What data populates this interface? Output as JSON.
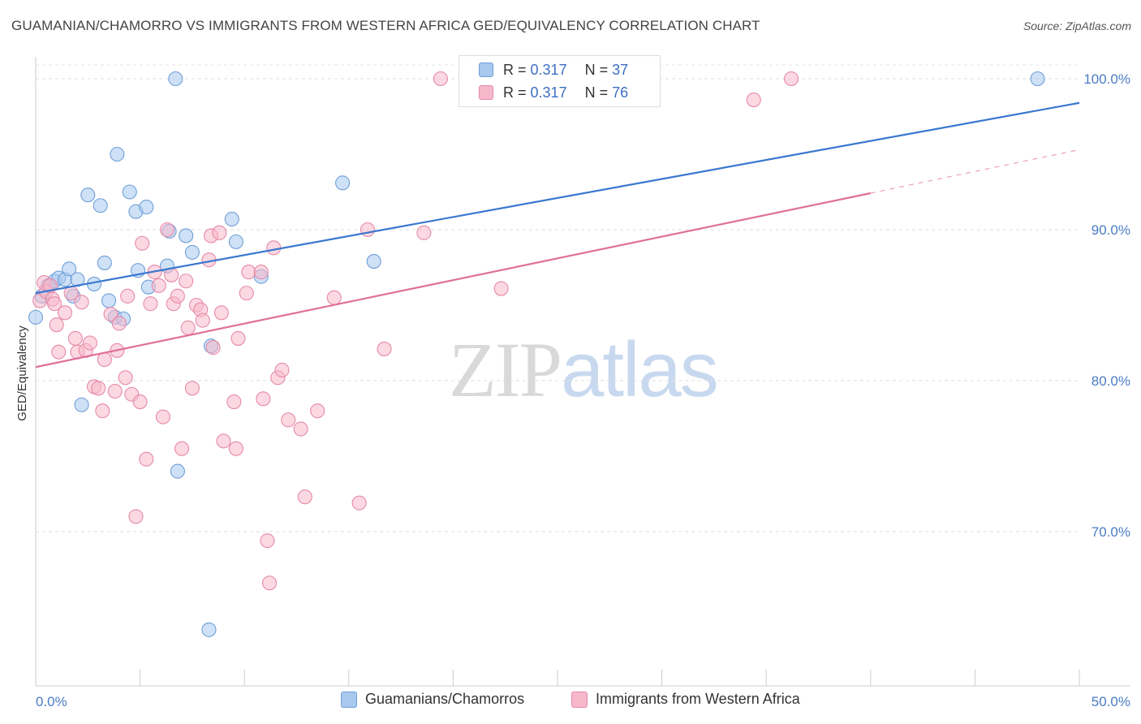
{
  "title": "GUAMANIAN/CHAMORRO VS IMMIGRANTS FROM WESTERN AFRICA GED/EQUIVALENCY CORRELATION CHART",
  "source": "Source: ZipAtlas.com",
  "watermark": {
    "zip": "ZIP",
    "atlas": "atlas"
  },
  "legend": {
    "r_label": "R =",
    "n_label": "N =",
    "rows": [
      {
        "r": "0.317",
        "n": "37",
        "color": "#a8c8ee",
        "border": "#6f9fd8"
      },
      {
        "r": "0.317",
        "n": "76",
        "color": "#f7b8cb",
        "border": "#e68aa8"
      }
    ]
  },
  "bottom_legend": [
    "Guamanians/Chamorros",
    "Immigrants from Western Africa"
  ],
  "chart_data": {
    "type": "scatter",
    "title": "GUAMANIAN/CHAMORRO VS IMMIGRANTS FROM WESTERN AFRICA GED/EQUIVALENCY CORRELATION CHART",
    "xlabel": "",
    "ylabel": "GED/Equivalency",
    "xlim": [
      0,
      50
    ],
    "ylim": [
      61.5,
      102
    ],
    "x_tick_labels": [
      "0.0%",
      "50.0%"
    ],
    "y_ticks": [
      70,
      80,
      90,
      100
    ],
    "y_tick_labels": [
      "70.0%",
      "80.0%",
      "90.0%",
      "100.0%"
    ],
    "grid": "horizontal dashed",
    "legend_placement": "top-center",
    "series": [
      {
        "name": "Guamanians/Chamorros",
        "color": "#6f9fd8",
        "fill": "#a8c8ee",
        "trend": {
          "x": [
            0,
            50
          ],
          "y": [
            85.8,
            98.4
          ],
          "dashed_from": null
        },
        "points": [
          [
            0.0,
            84.2
          ],
          [
            0.3,
            85.6
          ],
          [
            0.6,
            86.3
          ],
          [
            0.9,
            86.6
          ],
          [
            1.1,
            86.8
          ],
          [
            1.4,
            86.7
          ],
          [
            1.6,
            87.4
          ],
          [
            1.8,
            85.6
          ],
          [
            2.0,
            86.7
          ],
          [
            2.2,
            78.4
          ],
          [
            2.5,
            92.3
          ],
          [
            2.8,
            86.4
          ],
          [
            3.1,
            91.6
          ],
          [
            3.3,
            87.8
          ],
          [
            3.5,
            85.3
          ],
          [
            3.8,
            84.2
          ],
          [
            3.9,
            95.0
          ],
          [
            4.2,
            84.1
          ],
          [
            4.5,
            92.5
          ],
          [
            4.8,
            91.2
          ],
          [
            4.9,
            87.3
          ],
          [
            5.3,
            91.5
          ],
          [
            5.4,
            86.2
          ],
          [
            6.3,
            87.6
          ],
          [
            6.4,
            89.9
          ],
          [
            6.7,
            100.0
          ],
          [
            6.8,
            74.0
          ],
          [
            7.2,
            89.6
          ],
          [
            7.5,
            88.5
          ],
          [
            8.3,
            63.5
          ],
          [
            8.4,
            82.3
          ],
          [
            9.4,
            90.7
          ],
          [
            9.6,
            89.2
          ],
          [
            10.8,
            86.9
          ],
          [
            14.7,
            93.1
          ],
          [
            16.2,
            87.9
          ],
          [
            48.0,
            100.0
          ]
        ]
      },
      {
        "name": "Immigrants from Western Africa",
        "color": "#e68aa8",
        "fill": "#f7b8cb",
        "trend": {
          "x": [
            0,
            50
          ],
          "y": [
            80.9,
            95.3
          ],
          "dashed_from": 40
        },
        "points": [
          [
            0.2,
            85.3
          ],
          [
            0.4,
            86.5
          ],
          [
            0.5,
            85.9
          ],
          [
            0.7,
            86.3
          ],
          [
            0.8,
            85.4
          ],
          [
            0.9,
            85.1
          ],
          [
            1.0,
            83.7
          ],
          [
            1.1,
            81.9
          ],
          [
            1.4,
            84.5
          ],
          [
            1.7,
            85.8
          ],
          [
            1.9,
            82.8
          ],
          [
            2.0,
            81.9
          ],
          [
            2.2,
            85.2
          ],
          [
            2.4,
            82.0
          ],
          [
            2.6,
            82.5
          ],
          [
            2.8,
            79.6
          ],
          [
            3.0,
            79.5
          ],
          [
            3.2,
            78.0
          ],
          [
            3.3,
            81.4
          ],
          [
            3.6,
            84.4
          ],
          [
            3.8,
            79.3
          ],
          [
            3.9,
            82.0
          ],
          [
            4.0,
            83.8
          ],
          [
            4.3,
            80.2
          ],
          [
            4.4,
            85.6
          ],
          [
            4.6,
            79.1
          ],
          [
            4.8,
            71.0
          ],
          [
            5.0,
            78.6
          ],
          [
            5.1,
            89.1
          ],
          [
            5.3,
            74.8
          ],
          [
            5.5,
            85.1
          ],
          [
            5.7,
            87.2
          ],
          [
            5.9,
            86.3
          ],
          [
            6.1,
            77.6
          ],
          [
            6.3,
            90.0
          ],
          [
            6.5,
            87.0
          ],
          [
            6.6,
            85.1
          ],
          [
            6.8,
            85.6
          ],
          [
            7.0,
            75.5
          ],
          [
            7.2,
            86.6
          ],
          [
            7.3,
            83.5
          ],
          [
            7.5,
            79.5
          ],
          [
            7.7,
            85.0
          ],
          [
            7.9,
            84.7
          ],
          [
            8.0,
            84.0
          ],
          [
            8.3,
            88.0
          ],
          [
            8.4,
            89.6
          ],
          [
            8.5,
            82.2
          ],
          [
            8.8,
            89.8
          ],
          [
            8.9,
            84.5
          ],
          [
            9.5,
            78.6
          ],
          [
            9.6,
            75.5
          ],
          [
            9.7,
            82.8
          ],
          [
            10.1,
            85.8
          ],
          [
            10.2,
            87.2
          ],
          [
            10.8,
            87.2
          ],
          [
            10.9,
            78.8
          ],
          [
            11.1,
            69.4
          ],
          [
            11.2,
            66.6
          ],
          [
            11.4,
            88.8
          ],
          [
            11.6,
            80.2
          ],
          [
            11.8,
            80.7
          ],
          [
            12.1,
            77.4
          ],
          [
            12.7,
            76.8
          ],
          [
            12.9,
            72.3
          ],
          [
            13.5,
            78.0
          ],
          [
            14.3,
            85.5
          ],
          [
            15.5,
            71.9
          ],
          [
            15.9,
            90.0
          ],
          [
            16.7,
            82.1
          ],
          [
            18.6,
            89.8
          ],
          [
            19.4,
            100.0
          ],
          [
            22.3,
            86.1
          ],
          [
            34.4,
            98.6
          ],
          [
            36.2,
            100.0
          ],
          [
            9.0,
            76.0
          ]
        ]
      }
    ]
  }
}
